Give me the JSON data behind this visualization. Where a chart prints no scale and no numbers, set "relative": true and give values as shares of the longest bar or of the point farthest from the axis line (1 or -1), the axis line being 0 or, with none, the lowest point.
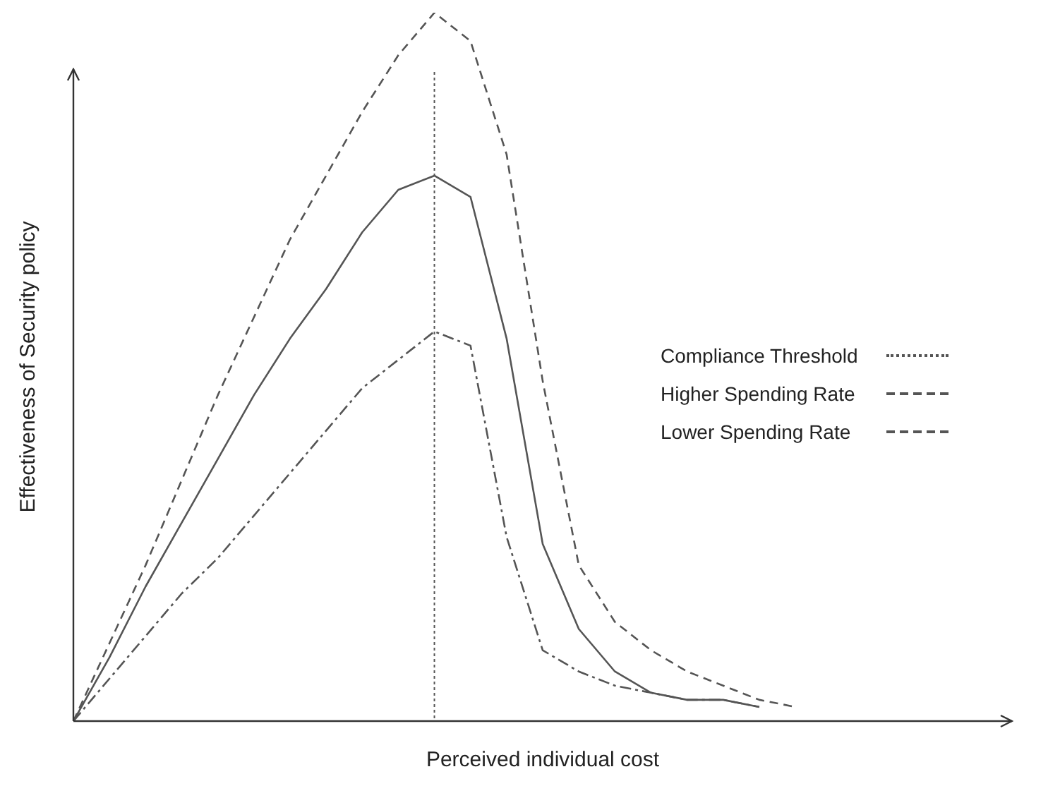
{
  "chart_data": {
    "type": "line",
    "xlabel": "Perceived individual cost",
    "ylabel": "Effectiveness of Security policy",
    "relative": true,
    "grid": false,
    "legend": "right",
    "marker": "none",
    "categories": [
      null,
      null,
      null,
      null,
      null,
      null,
      null,
      null,
      null,
      null,
      null,
      null,
      null,
      null,
      null,
      null,
      null,
      null,
      null,
      null,
      null,
      null,
      null,
      null,
      null,
      null,
      null
    ],
    "series": [
      {
        "color": "#555555",
        "line_style": "solid",
        "values": [
          0,
          0.09,
          0.19,
          0.28,
          0.37,
          0.46,
          0.54,
          0.61,
          0.69,
          0.75,
          0.77,
          0.74,
          0.54,
          0.25,
          0.13,
          0.07,
          0.04,
          0.03,
          0.03,
          0.02,
          null,
          null,
          null,
          null,
          null,
          null,
          null
        ]
      },
      {
        "name": "Higher Spending Rate",
        "color": "#555555",
        "line_style": "dashdot",
        "values": [
          0,
          0.06,
          0.12,
          0.18,
          0.23,
          0.29,
          0.35,
          0.41,
          0.47,
          0.51,
          0.55,
          0.53,
          0.26,
          0.1,
          0.07,
          0.05,
          0.04,
          0.03,
          0.03,
          0.02,
          null,
          null,
          null,
          null,
          null,
          null,
          null
        ]
      },
      {
        "name": "Lower Spending Rate",
        "color": "#555555",
        "line_style": "dashed",
        "values": [
          0,
          0.11,
          0.22,
          0.34,
          0.46,
          0.57,
          0.68,
          0.77,
          0.86,
          0.94,
          1,
          0.96,
          0.8,
          0.48,
          0.22,
          0.14,
          0.1,
          0.07,
          0.05,
          0.03,
          0.02,
          null,
          null,
          null,
          null,
          null,
          null
        ]
      }
    ],
    "ref_lines": [
      {
        "axis": "x",
        "label": "Compliance Threshold",
        "color": "#555555",
        "line_style": "dotted"
      }
    ]
  }
}
